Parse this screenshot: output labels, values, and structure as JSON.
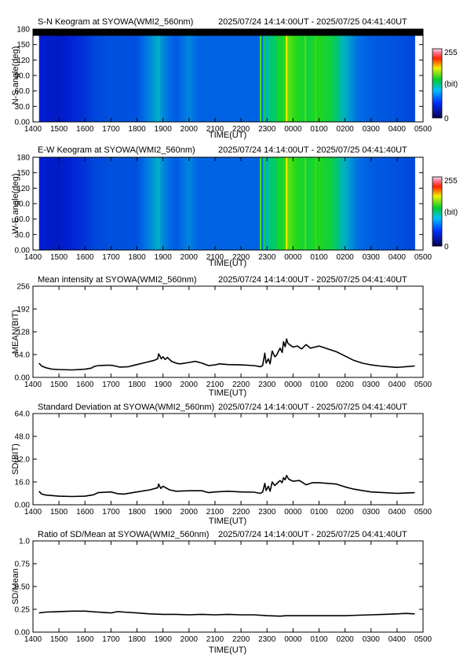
{
  "chart_data": [
    {
      "type": "heatmap",
      "title": "S-N Keogram at SYOWA(WMI2_560nm)",
      "time_range": "2025/07/24 14:14:00UT - 2025/07/25 04:41:40UT",
      "xlabel": "TIME(UT)",
      "ylabel": "N-S angle(deg)",
      "x_ticks": [
        "1400",
        "1500",
        "1600",
        "1700",
        "1800",
        "1900",
        "2000",
        "2100",
        "2200",
        "2300",
        "0000",
        "0100",
        "0200",
        "0300",
        "0400",
        "0500"
      ],
      "y_ticks": [
        "0.00",
        "30.0",
        "60.0",
        "90.0",
        "120",
        "150",
        "180"
      ],
      "ylim": [
        0,
        180
      ],
      "no_data_above_deg": 167,
      "colorbar": {
        "min": "0",
        "max": "255",
        "unit": "(bit)"
      },
      "column_intensity": [
        {
          "time": "1414",
          "value": 0.18
        },
        {
          "time": "1500",
          "value": 0.16
        },
        {
          "time": "1600",
          "value": 0.22
        },
        {
          "time": "1620",
          "value": 0.25
        },
        {
          "time": "1700",
          "value": 0.27
        },
        {
          "time": "1800",
          "value": 0.27
        },
        {
          "time": "1850",
          "value": 0.42
        },
        {
          "time": "1900",
          "value": 0.36
        },
        {
          "time": "1930",
          "value": 0.28
        },
        {
          "time": "2000",
          "value": 0.36
        },
        {
          "time": "2020",
          "value": 0.3
        },
        {
          "time": "2100",
          "value": 0.3
        },
        {
          "time": "2200",
          "value": 0.3
        },
        {
          "time": "2250",
          "value": 0.3
        },
        {
          "time": "2300",
          "value": 0.48
        },
        {
          "time": "2330",
          "value": 0.58
        },
        {
          "time": "2350",
          "value": 0.68
        },
        {
          "time": "0000",
          "value": 0.64
        },
        {
          "time": "0030",
          "value": 0.58
        },
        {
          "time": "0100",
          "value": 0.62
        },
        {
          "time": "0130",
          "value": 0.57
        },
        {
          "time": "0200",
          "value": 0.42
        },
        {
          "time": "0230",
          "value": 0.32
        },
        {
          "time": "0300",
          "value": 0.29
        },
        {
          "time": "0400",
          "value": 0.27
        },
        {
          "time": "0441",
          "value": 0.25
        }
      ],
      "bright_lines": [
        {
          "time": "2245",
          "value": 0.65
        },
        {
          "time": "2253",
          "value": 0.58
        },
        {
          "time": "2328",
          "value": 0.62
        },
        {
          "time": "2345",
          "value": 0.82
        },
        {
          "time": "0028",
          "value": 0.66
        },
        {
          "time": "0052",
          "value": 0.64
        }
      ]
    },
    {
      "type": "heatmap",
      "title": "E-W Keogram at SYOWA(WMI2_560nm)",
      "time_range": "2025/07/24 14:14:00UT - 2025/07/25 04:41:40UT",
      "xlabel": "TIME(UT)",
      "ylabel": "W-E angle(deg)",
      "x_ticks": [
        "1400",
        "1500",
        "1600",
        "1700",
        "1800",
        "1900",
        "2000",
        "2100",
        "2200",
        "2300",
        "0000",
        "0100",
        "0200",
        "0300",
        "0400",
        "0500"
      ],
      "y_ticks": [
        "0.00",
        "30.0",
        "60.0",
        "90.0",
        "120",
        "150",
        "180"
      ],
      "ylim": [
        0,
        180
      ],
      "colorbar": {
        "min": "0",
        "max": "255",
        "unit": "(bit)"
      },
      "column_intensity": [
        {
          "time": "1414",
          "value": 0.18
        },
        {
          "time": "1500",
          "value": 0.16
        },
        {
          "time": "1600",
          "value": 0.22
        },
        {
          "time": "1620",
          "value": 0.25
        },
        {
          "time": "1700",
          "value": 0.27
        },
        {
          "time": "1800",
          "value": 0.27
        },
        {
          "time": "1850",
          "value": 0.42
        },
        {
          "time": "1900",
          "value": 0.36
        },
        {
          "time": "1930",
          "value": 0.28
        },
        {
          "time": "2000",
          "value": 0.36
        },
        {
          "time": "2020",
          "value": 0.3
        },
        {
          "time": "2100",
          "value": 0.3
        },
        {
          "time": "2200",
          "value": 0.3
        },
        {
          "time": "2250",
          "value": 0.3
        },
        {
          "time": "2300",
          "value": 0.48
        },
        {
          "time": "2330",
          "value": 0.58
        },
        {
          "time": "2350",
          "value": 0.68
        },
        {
          "time": "0000",
          "value": 0.64
        },
        {
          "time": "0030",
          "value": 0.58
        },
        {
          "time": "0100",
          "value": 0.62
        },
        {
          "time": "0130",
          "value": 0.57
        },
        {
          "time": "0200",
          "value": 0.42
        },
        {
          "time": "0230",
          "value": 0.32
        },
        {
          "time": "0300",
          "value": 0.29
        },
        {
          "time": "0400",
          "value": 0.27
        },
        {
          "time": "0441",
          "value": 0.25
        }
      ],
      "bright_lines": [
        {
          "time": "2245",
          "value": 0.65
        },
        {
          "time": "2253",
          "value": 0.58
        },
        {
          "time": "2328",
          "value": 0.62
        },
        {
          "time": "2345",
          "value": 0.82
        },
        {
          "time": "0028",
          "value": 0.66
        },
        {
          "time": "0052",
          "value": 0.64
        }
      ]
    },
    {
      "type": "line",
      "title": "Mean intensity at SYOWA(WMI2_560nm)",
      "time_range": "2025/07/24 14:14:00UT - 2025/07/25 04:41:40UT",
      "xlabel": "TIME(UT)",
      "ylabel": "MEAN(BIT)",
      "x_ticks": [
        "1400",
        "1500",
        "1600",
        "1700",
        "1800",
        "1900",
        "2000",
        "2100",
        "2200",
        "2300",
        "0000",
        "0100",
        "0200",
        "0300",
        "0400",
        "0500"
      ],
      "y_ticks": [
        "0.00",
        "64.0",
        "128",
        "192",
        "256"
      ],
      "ylim": [
        0,
        256
      ],
      "series": [
        {
          "points": [
            [
              "1414",
              40
            ],
            [
              "1420",
              32
            ],
            [
              "1430",
              27
            ],
            [
              "1445",
              23
            ],
            [
              "1500",
              22
            ],
            [
              "1530",
              21
            ],
            [
              "1600",
              23
            ],
            [
              "1615",
              26
            ],
            [
              "1620",
              30
            ],
            [
              "1630",
              33
            ],
            [
              "1650",
              34
            ],
            [
              "1700",
              34
            ],
            [
              "1710",
              32
            ],
            [
              "1720",
              29
            ],
            [
              "1740",
              30
            ],
            [
              "1800",
              36
            ],
            [
              "1820",
              42
            ],
            [
              "1840",
              48
            ],
            [
              "1848",
              52
            ],
            [
              "1850",
              66
            ],
            [
              "1853",
              60
            ],
            [
              "1856",
              52
            ],
            [
              "1900",
              58
            ],
            [
              "1905",
              50
            ],
            [
              "1910",
              56
            ],
            [
              "1920",
              45
            ],
            [
              "1930",
              40
            ],
            [
              "1940",
              38
            ],
            [
              "2000",
              42
            ],
            [
              "2015",
              45
            ],
            [
              "2030",
              40
            ],
            [
              "2045",
              33
            ],
            [
              "2100",
              35
            ],
            [
              "2110",
              38
            ],
            [
              "2130",
              36
            ],
            [
              "2200",
              35
            ],
            [
              "2230",
              33
            ],
            [
              "2245",
              30
            ],
            [
              "2250",
              34
            ],
            [
              "2255",
              68
            ],
            [
              "2258",
              40
            ],
            [
              "2303",
              52
            ],
            [
              "2307",
              38
            ],
            [
              "2312",
              74
            ],
            [
              "2318",
              58
            ],
            [
              "2322",
              62
            ],
            [
              "2330",
              82
            ],
            [
              "2335",
              70
            ],
            [
              "2338",
              100
            ],
            [
              "2342",
              86
            ],
            [
              "2345",
              108
            ],
            [
              "2348",
              96
            ],
            [
              "2352",
              92
            ],
            [
              "0000",
              85
            ],
            [
              "0010",
              88
            ],
            [
              "0020",
              80
            ],
            [
              "0030",
              92
            ],
            [
              "0040",
              82
            ],
            [
              "0100",
              88
            ],
            [
              "0110",
              84
            ],
            [
              "0120",
              80
            ],
            [
              "0140",
              72
            ],
            [
              "0200",
              60
            ],
            [
              "0220",
              48
            ],
            [
              "0240",
              40
            ],
            [
              "0300",
              35
            ],
            [
              "0320",
              32
            ],
            [
              "0340",
              30
            ],
            [
              "0400",
              28
            ],
            [
              "0420",
              30
            ],
            [
              "0441",
              32
            ]
          ]
        }
      ]
    },
    {
      "type": "line",
      "title": "Standard Deviation at SYOWA(WMI2_560nm)",
      "time_range": "2025/07/24 14:14:00UT - 2025/07/25 04:41:40UT",
      "xlabel": "TIME(UT)",
      "ylabel": "SD(BIT)",
      "x_ticks": [
        "1400",
        "1500",
        "1600",
        "1700",
        "1800",
        "1900",
        "2000",
        "2100",
        "2200",
        "2300",
        "0000",
        "0100",
        "0200",
        "0300",
        "0400",
        "0500"
      ],
      "y_ticks": [
        "0.00",
        "16.0",
        "32.0",
        "48.0",
        "64.0"
      ],
      "ylim": [
        0,
        64
      ],
      "series": [
        {
          "points": [
            [
              "1414",
              9.5
            ],
            [
              "1420",
              7.5
            ],
            [
              "1430",
              6.8
            ],
            [
              "1500",
              6.0
            ],
            [
              "1530",
              5.8
            ],
            [
              "1600",
              6.0
            ],
            [
              "1620",
              7.0
            ],
            [
              "1630",
              8.5
            ],
            [
              "1700",
              9.0
            ],
            [
              "1715",
              7.8
            ],
            [
              "1730",
              7.5
            ],
            [
              "1800",
              9.0
            ],
            [
              "1830",
              10.5
            ],
            [
              "1848",
              12.0
            ],
            [
              "1850",
              14.5
            ],
            [
              "1855",
              11.5
            ],
            [
              "1900",
              13.0
            ],
            [
              "1915",
              10.5
            ],
            [
              "1930",
              9.5
            ],
            [
              "2000",
              9.8
            ],
            [
              "2030",
              9.8
            ],
            [
              "2045",
              8.5
            ],
            [
              "2100",
              9.0
            ],
            [
              "2130",
              9.5
            ],
            [
              "2200",
              9.0
            ],
            [
              "2230",
              8.8
            ],
            [
              "2245",
              8.0
            ],
            [
              "2250",
              9.0
            ],
            [
              "2255",
              15.0
            ],
            [
              "2258",
              10.0
            ],
            [
              "2303",
              13.0
            ],
            [
              "2307",
              9.5
            ],
            [
              "2312",
              16.0
            ],
            [
              "2318",
              13.5
            ],
            [
              "2325",
              15.5
            ],
            [
              "2330",
              17.0
            ],
            [
              "2335",
              15.5
            ],
            [
              "2338",
              19.0
            ],
            [
              "2342",
              17.5
            ],
            [
              "2345",
              20.5
            ],
            [
              "2350",
              18.0
            ],
            [
              "0000",
              16.5
            ],
            [
              "0015",
              17.0
            ],
            [
              "0030",
              14.0
            ],
            [
              "0045",
              15.5
            ],
            [
              "0100",
              15.5
            ],
            [
              "0120",
              15.0
            ],
            [
              "0140",
              14.5
            ],
            [
              "0200",
              12.5
            ],
            [
              "0220",
              11.0
            ],
            [
              "0240",
              10.0
            ],
            [
              "0300",
              9.0
            ],
            [
              "0330",
              8.5
            ],
            [
              "0400",
              8.0
            ],
            [
              "0420",
              8.2
            ],
            [
              "0441",
              8.5
            ]
          ]
        }
      ]
    },
    {
      "type": "line",
      "title": "Ratio of SD/Mean at SYOWA(WMI2_560nm)",
      "time_range": "2025/07/24 14:14:00UT - 2025/07/25 04:41:40UT",
      "xlabel": "TIME(UT)",
      "ylabel": "SD/Mean",
      "x_ticks": [
        "1400",
        "1500",
        "1600",
        "1700",
        "1800",
        "1900",
        "2000",
        "2100",
        "2200",
        "2300",
        "0000",
        "0100",
        "0200",
        "0300",
        "0400",
        "0500"
      ],
      "y_ticks": [
        "0.00",
        "0.25",
        "0.50",
        "0.75",
        "1.0"
      ],
      "ylim": [
        0,
        1.0
      ],
      "series": [
        {
          "points": [
            [
              "1414",
              0.21
            ],
            [
              "1430",
              0.22
            ],
            [
              "1500",
              0.225
            ],
            [
              "1530",
              0.23
            ],
            [
              "1600",
              0.23
            ],
            [
              "1630",
              0.22
            ],
            [
              "1700",
              0.21
            ],
            [
              "1715",
              0.225
            ],
            [
              "1730",
              0.22
            ],
            [
              "1800",
              0.21
            ],
            [
              "1830",
              0.2
            ],
            [
              "1900",
              0.195
            ],
            [
              "1930",
              0.195
            ],
            [
              "2000",
              0.19
            ],
            [
              "2030",
              0.195
            ],
            [
              "2100",
              0.19
            ],
            [
              "2130",
              0.195
            ],
            [
              "2200",
              0.19
            ],
            [
              "2230",
              0.19
            ],
            [
              "2300",
              0.18
            ],
            [
              "2330",
              0.175
            ],
            [
              "2345",
              0.18
            ],
            [
              "0000",
              0.18
            ],
            [
              "0030",
              0.18
            ],
            [
              "0100",
              0.18
            ],
            [
              "0130",
              0.18
            ],
            [
              "0200",
              0.18
            ],
            [
              "0230",
              0.185
            ],
            [
              "0300",
              0.19
            ],
            [
              "0330",
              0.195
            ],
            [
              "0400",
              0.2
            ],
            [
              "0420",
              0.205
            ],
            [
              "0441",
              0.2
            ]
          ]
        }
      ]
    }
  ]
}
